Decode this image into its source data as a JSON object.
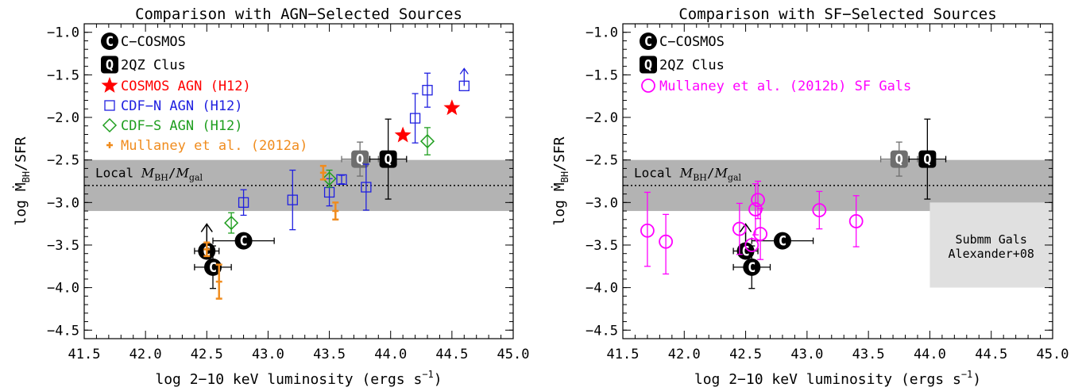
{
  "colors": {
    "black": "#000000",
    "gray_q": "#6e6e6e",
    "band": "#b3b3b3",
    "submm_box": "#e0e0e0",
    "red": "#ff0000",
    "blue": "#2020e0",
    "green": "#1f9e1f",
    "orange": "#f08c1e",
    "magenta": "#ff00ff"
  },
  "chart_data": [
    {
      "type": "scatter",
      "title": "Comparison with AGN−Selected Sources",
      "xlabel": "log 2−10 keV luminosity (ergs s",
      "xlabel_sup": "−1",
      "xlabel_end": ")",
      "ylabel": "log Ṁ",
      "ylabel_sub": "BH",
      "ylabel_end": "/SFR",
      "xlim": [
        41.5,
        45.0
      ],
      "ylim": [
        -4.6,
        -0.9
      ],
      "xticks": [
        "41.5",
        "42.0",
        "42.5",
        "43.0",
        "43.5",
        "44.0",
        "44.5",
        "45.0"
      ],
      "yticks": [
        "−1.0",
        "−1.5",
        "−2.0",
        "−2.5",
        "−3.0",
        "−3.5",
        "−4.0",
        "−4.5"
      ],
      "band": {
        "y0": -3.1,
        "y1": -2.5,
        "line": -2.8,
        "label": "Local M",
        "label_sub1": "BH",
        "label_mid": "/M",
        "label_sub2": "gal"
      },
      "legend": [
        {
          "marker": "C-filled",
          "label": "C−COSMOS",
          "color": "#000000"
        },
        {
          "marker": "Q-filled",
          "label": "2QZ Clus",
          "color": "#000000"
        },
        {
          "marker": "star",
          "label": "COSMOS AGN (H12)",
          "color": "#ff0000"
        },
        {
          "marker": "square",
          "label": "CDF−N AGN (H12)",
          "color": "#2020e0"
        },
        {
          "marker": "diamond",
          "label": "CDF−S AGN (H12)",
          "color": "#1f9e1f"
        },
        {
          "marker": "plus",
          "label": "Mullaney et al. (2012a)",
          "color": "#f08c1e"
        }
      ],
      "series": [
        {
          "key": "ccosmos",
          "points": [
            {
              "x": 42.8,
              "y": -3.45,
              "xerr": [
                0.25,
                0.25
              ],
              "yerr": [
                0,
                0
              ]
            },
            {
              "x": 42.5,
              "y": -3.57,
              "xerr": [
                0.1,
                0.1
              ],
              "yerr": [
                0,
                0
              ],
              "uplim": true
            },
            {
              "x": 42.55,
              "y": -3.76,
              "xerr": [
                0.15,
                0.15
              ],
              "yerr": [
                0.25,
                0.25
              ]
            }
          ]
        },
        {
          "key": "qclus",
          "points": [
            {
              "x": 43.75,
              "y": -2.49,
              "xerr": [
                0.15,
                0.15
              ],
              "yerr": [
                0.2,
                0.2
              ],
              "gray": true
            },
            {
              "x": 43.98,
              "y": -2.49,
              "xerr": [
                0.15,
                0.15
              ],
              "yerr": [
                0.47,
                0.47
              ]
            }
          ]
        },
        {
          "key": "cosmos_agn",
          "points": [
            {
              "x": 44.1,
              "y": -2.21,
              "xerr": [
                0,
                0
              ],
              "yerr": [
                0,
                0
              ]
            },
            {
              "x": 44.5,
              "y": -1.89,
              "xerr": [
                0,
                0
              ],
              "yerr": [
                0,
                0
              ]
            }
          ]
        },
        {
          "key": "cdfn_agn",
          "points": [
            {
              "x": 42.8,
              "y": -3.0,
              "yerr": [
                0.15,
                0.15
              ]
            },
            {
              "x": 43.2,
              "y": -2.97,
              "yerr": [
                0.35,
                0.35
              ]
            },
            {
              "x": 43.5,
              "y": -2.88,
              "yerr": [
                0.16,
                0.16
              ]
            },
            {
              "x": 43.6,
              "y": -2.73,
              "yerr": [
                0.05,
                0.05
              ]
            },
            {
              "x": 43.8,
              "y": -2.82,
              "yerr": [
                0.27,
                0.27
              ]
            },
            {
              "x": 44.2,
              "y": -2.01,
              "yerr": [
                0.29,
                0.29
              ]
            },
            {
              "x": 44.3,
              "y": -1.68,
              "yerr": [
                0.2,
                0.2
              ]
            },
            {
              "x": 44.6,
              "y": -1.63,
              "yerr": [
                0,
                0
              ],
              "lowlim": true
            }
          ]
        },
        {
          "key": "cdfs_agn",
          "points": [
            {
              "x": 42.7,
              "y": -3.24,
              "yerr": [
                0.12,
                0.12
              ]
            },
            {
              "x": 43.5,
              "y": -2.72,
              "yerr": [
                0.1,
                0.1
              ]
            },
            {
              "x": 44.3,
              "y": -2.28,
              "yerr": [
                0.16,
                0.16
              ]
            }
          ]
        },
        {
          "key": "mullaney_a",
          "points": [
            {
              "x": 42.5,
              "y": -3.55,
              "yerr": [
                0.08,
                0.08
              ]
            },
            {
              "x": 42.6,
              "y": -3.93,
              "yerr": [
                0.2,
                0.2
              ]
            },
            {
              "x": 43.45,
              "y": -2.65,
              "yerr": [
                0.08,
                0.08
              ]
            },
            {
              "x": 43.55,
              "y": -3.1,
              "yerr": [
                0.1,
                0.1
              ]
            }
          ]
        }
      ]
    },
    {
      "type": "scatter",
      "title": "Comparison with SF−Selected Sources",
      "xlabel": "log 2−10 keV luminosity (ergs s",
      "xlabel_sup": "−1",
      "xlabel_end": ")",
      "ylabel": "log Ṁ",
      "ylabel_sub": "BH",
      "ylabel_end": "/SFR",
      "xlim": [
        41.5,
        45.0
      ],
      "ylim": [
        -4.6,
        -0.9
      ],
      "xticks": [
        "41.5",
        "42.0",
        "42.5",
        "43.0",
        "43.5",
        "44.0",
        "44.5",
        "45.0"
      ],
      "yticks": [
        "−1.0",
        "−1.5",
        "−2.0",
        "−2.5",
        "−3.0",
        "−3.5",
        "−4.0",
        "−4.5"
      ],
      "band": {
        "y0": -3.1,
        "y1": -2.5,
        "line": -2.8,
        "label": "Local M",
        "label_sub1": "BH",
        "label_mid": "/M",
        "label_sub2": "gal"
      },
      "submm_box": {
        "x0": 44.0,
        "x1": 45.0,
        "y0": -4.0,
        "y1": -3.0,
        "label1": "Submm Gals",
        "label2": "Alexander+08"
      },
      "legend": [
        {
          "marker": "C-filled",
          "label": "C−COSMOS",
          "color": "#000000"
        },
        {
          "marker": "Q-filled",
          "label": "2QZ Clus",
          "color": "#000000"
        },
        {
          "marker": "circle",
          "label": "Mullaney et al. (2012b) SF Gals",
          "color": "#ff00ff"
        }
      ],
      "series": [
        {
          "key": "ccosmos",
          "points": [
            {
              "x": 42.8,
              "y": -3.45,
              "xerr": [
                0.25,
                0.25
              ],
              "yerr": [
                0,
                0
              ]
            },
            {
              "x": 42.5,
              "y": -3.57,
              "xerr": [
                0.1,
                0.1
              ],
              "yerr": [
                0,
                0
              ],
              "uplim": true
            },
            {
              "x": 42.55,
              "y": -3.76,
              "xerr": [
                0.15,
                0.15
              ],
              "yerr": [
                0.25,
                0.25
              ]
            }
          ]
        },
        {
          "key": "qclus",
          "points": [
            {
              "x": 43.75,
              "y": -2.49,
              "xerr": [
                0.15,
                0.15
              ],
              "yerr": [
                0.2,
                0.2
              ],
              "gray": true
            },
            {
              "x": 43.98,
              "y": -2.49,
              "xerr": [
                0.15,
                0.15
              ],
              "yerr": [
                0.47,
                0.47
              ]
            }
          ]
        },
        {
          "key": "mullaney_b",
          "points": [
            {
              "x": 41.7,
              "y": -3.33,
              "yerr": [
                0.42,
                0.45
              ]
            },
            {
              "x": 41.85,
              "y": -3.46,
              "yerr": [
                0.38,
                0.32
              ]
            },
            {
              "x": 42.45,
              "y": -3.31,
              "yerr": [
                0.3,
                0.3
              ]
            },
            {
              "x": 42.55,
              "y": -3.5,
              "yerr": [
                0.0,
                0.0
              ]
            },
            {
              "x": 42.58,
              "y": -3.08,
              "yerr": [
                0.3,
                0.3
              ]
            },
            {
              "x": 42.6,
              "y": -2.97,
              "yerr": [
                0.22,
                0.22
              ]
            },
            {
              "x": 42.62,
              "y": -3.37,
              "yerr": [
                0.3,
                0.3
              ]
            },
            {
              "x": 43.1,
              "y": -3.09,
              "yerr": [
                0.22,
                0.22
              ]
            },
            {
              "x": 43.4,
              "y": -3.22,
              "yerr": [
                0.3,
                0.3
              ]
            }
          ]
        }
      ]
    }
  ]
}
